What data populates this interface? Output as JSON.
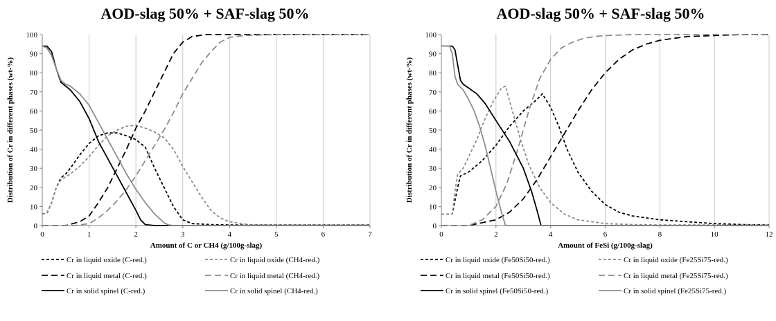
{
  "chart_data": [
    {
      "type": "line",
      "title": "AOD-slag 50% + SAF-slag 50%",
      "xlabel": "Amount of C or CH4 (g/100g-slag)",
      "ylabel": "Distribution of Cr in different phases (wt-%)",
      "xlim": [
        0,
        7
      ],
      "ylim": [
        0,
        100
      ],
      "xticks": [
        0,
        1,
        2,
        3,
        4,
        5,
        6,
        7
      ],
      "yticks": [
        0,
        10,
        20,
        30,
        40,
        50,
        60,
        70,
        80,
        90,
        100
      ],
      "grid": "vertical",
      "legend_placement": "bottom",
      "series": [
        {
          "name": "Cr in liquid oxide (C-red.)",
          "color": "#000000",
          "dash": "short",
          "points": [
            [
              0,
              6
            ],
            [
              0.1,
              6.5
            ],
            [
              0.2,
              12
            ],
            [
              0.3,
              20
            ],
            [
              0.4,
              25
            ],
            [
              0.5,
              27
            ],
            [
              0.6,
              30
            ],
            [
              0.8,
              37
            ],
            [
              1.0,
              43
            ],
            [
              1.2,
              47
            ],
            [
              1.4,
              48.5
            ],
            [
              1.6,
              48.5
            ],
            [
              1.8,
              47
            ],
            [
              2.0,
              45
            ],
            [
              2.2,
              41
            ],
            [
              2.4,
              30
            ],
            [
              2.6,
              20
            ],
            [
              2.8,
              10
            ],
            [
              3.0,
              3
            ],
            [
              3.2,
              1
            ],
            [
              3.6,
              0.5
            ],
            [
              4.0,
              0.3
            ],
            [
              7.0,
              0.3
            ]
          ]
        },
        {
          "name": "Cr in liquid oxide (CH4-red.)",
          "color": "#8c8c8c",
          "dash": "short",
          "points": [
            [
              0,
              6
            ],
            [
              0.1,
              6.5
            ],
            [
              0.2,
              12
            ],
            [
              0.3,
              20
            ],
            [
              0.4,
              24
            ],
            [
              0.6,
              27
            ],
            [
              0.8,
              31
            ],
            [
              1.0,
              36
            ],
            [
              1.2,
              42
            ],
            [
              1.4,
              47
            ],
            [
              1.6,
              50
            ],
            [
              1.8,
              52
            ],
            [
              2.0,
              52.5
            ],
            [
              2.2,
              51
            ],
            [
              2.4,
              49
            ],
            [
              2.6,
              46
            ],
            [
              2.8,
              40
            ],
            [
              3.0,
              31
            ],
            [
              3.2,
              23
            ],
            [
              3.4,
              15
            ],
            [
              3.6,
              8
            ],
            [
              3.8,
              4
            ],
            [
              4.0,
              2
            ],
            [
              4.4,
              0.5
            ],
            [
              5.0,
              0.3
            ],
            [
              7.0,
              0.3
            ]
          ]
        },
        {
          "name": "Cr in liquid metal (C-red.)",
          "color": "#000000",
          "dash": "long",
          "points": [
            [
              0,
              0
            ],
            [
              0.5,
              0
            ],
            [
              0.8,
              2
            ],
            [
              1.0,
              5
            ],
            [
              1.2,
              12
            ],
            [
              1.4,
              20
            ],
            [
              1.6,
              30
            ],
            [
              1.8,
              40
            ],
            [
              2.0,
              51
            ],
            [
              2.2,
              60
            ],
            [
              2.4,
              70
            ],
            [
              2.6,
              80
            ],
            [
              2.8,
              90
            ],
            [
              3.0,
              96
            ],
            [
              3.2,
              99
            ],
            [
              3.5,
              100
            ],
            [
              7.0,
              100
            ]
          ]
        },
        {
          "name": "Cr in liquid metal (CH4-red.)",
          "color": "#8c8c8c",
          "dash": "long",
          "points": [
            [
              0,
              0
            ],
            [
              0.7,
              0
            ],
            [
              1.0,
              1
            ],
            [
              1.2,
              4
            ],
            [
              1.4,
              8
            ],
            [
              1.6,
              13
            ],
            [
              1.8,
              19
            ],
            [
              2.0,
              26
            ],
            [
              2.2,
              34
            ],
            [
              2.4,
              42
            ],
            [
              2.6,
              50
            ],
            [
              2.8,
              59
            ],
            [
              3.0,
              69
            ],
            [
              3.2,
              77
            ],
            [
              3.4,
              85
            ],
            [
              3.6,
              91
            ],
            [
              3.8,
              96
            ],
            [
              4.0,
              98.5
            ],
            [
              4.3,
              99.5
            ],
            [
              5.0,
              100
            ],
            [
              7.0,
              100
            ]
          ]
        },
        {
          "name": "Cr in solid spinel (C-red.)",
          "color": "#000000",
          "dash": "solid",
          "points": [
            [
              0,
              94
            ],
            [
              0.1,
              94
            ],
            [
              0.2,
              91
            ],
            [
              0.3,
              82
            ],
            [
              0.4,
              75
            ],
            [
              0.5,
              73
            ],
            [
              0.6,
              71
            ],
            [
              0.8,
              65
            ],
            [
              1.0,
              56
            ],
            [
              1.2,
              44
            ],
            [
              1.4,
              35
            ],
            [
              1.6,
              26
            ],
            [
              1.8,
              17
            ],
            [
              2.0,
              8
            ],
            [
              2.1,
              3
            ],
            [
              2.2,
              0.5
            ],
            [
              2.4,
              0
            ],
            [
              7.0,
              0
            ]
          ]
        },
        {
          "name": "Cr in solid spinel (CH4-red.)",
          "color": "#8c8c8c",
          "dash": "solid",
          "points": [
            [
              0,
              94
            ],
            [
              0.1,
              93
            ],
            [
              0.2,
              89
            ],
            [
              0.3,
              82
            ],
            [
              0.4,
              76
            ],
            [
              0.5,
              74
            ],
            [
              0.6,
              73
            ],
            [
              0.8,
              69
            ],
            [
              1.0,
              63
            ],
            [
              1.2,
              54
            ],
            [
              1.4,
              45
            ],
            [
              1.6,
              36
            ],
            [
              1.8,
              27
            ],
            [
              2.0,
              19
            ],
            [
              2.2,
              12
            ],
            [
              2.4,
              6
            ],
            [
              2.6,
              1.5
            ],
            [
              2.7,
              0.3
            ],
            [
              2.8,
              0
            ],
            [
              7.0,
              0
            ]
          ]
        }
      ]
    },
    {
      "type": "line",
      "title": "AOD-slag 50% + SAF-slag 50%",
      "xlabel": "Amount of FeSi (g/100g-slag)",
      "ylabel": "Distribution of Cr in different phases (wt-%)",
      "xlim": [
        0,
        12
      ],
      "ylim": [
        0,
        100
      ],
      "xticks": [
        0,
        2,
        4,
        6,
        8,
        10,
        12
      ],
      "yticks": [
        0,
        10,
        20,
        30,
        40,
        50,
        60,
        70,
        80,
        90,
        100
      ],
      "grid": "vertical",
      "legend_placement": "bottom",
      "series": [
        {
          "name": "Cr in liquid oxide (Fe50Si50-red.)",
          "color": "#000000",
          "dash": "short",
          "points": [
            [
              0,
              6
            ],
            [
              0.4,
              6
            ],
            [
              0.6,
              20
            ],
            [
              0.7,
              26
            ],
            [
              1.0,
              28
            ],
            [
              1.5,
              34
            ],
            [
              2.0,
              42
            ],
            [
              2.5,
              52
            ],
            [
              3.0,
              60
            ],
            [
              3.5,
              66
            ],
            [
              3.7,
              69
            ],
            [
              4.0,
              62
            ],
            [
              4.3,
              52
            ],
            [
              4.6,
              40
            ],
            [
              5.0,
              28
            ],
            [
              5.5,
              18
            ],
            [
              6.0,
              11
            ],
            [
              6.5,
              7
            ],
            [
              7.0,
              5
            ],
            [
              8.0,
              3
            ],
            [
              9.0,
              2
            ],
            [
              10.0,
              1
            ],
            [
              11.0,
              0.5
            ],
            [
              12.0,
              0.3
            ]
          ]
        },
        {
          "name": "Cr in liquid oxide (Fe25Si75-red.)",
          "color": "#8c8c8c",
          "dash": "short",
          "points": [
            [
              0,
              6
            ],
            [
              0.4,
              6
            ],
            [
              0.5,
              18
            ],
            [
              0.6,
              27
            ],
            [
              0.8,
              30
            ],
            [
              1.0,
              36
            ],
            [
              1.3,
              45
            ],
            [
              1.6,
              56
            ],
            [
              1.9,
              65
            ],
            [
              2.2,
              72
            ],
            [
              2.35,
              73
            ],
            [
              2.6,
              60
            ],
            [
              2.9,
              45
            ],
            [
              3.2,
              32
            ],
            [
              3.6,
              20
            ],
            [
              4.0,
              12
            ],
            [
              4.5,
              6
            ],
            [
              5.0,
              3
            ],
            [
              6.0,
              1
            ],
            [
              7.0,
              0.5
            ],
            [
              8.0,
              0.3
            ],
            [
              12.0,
              0.3
            ]
          ]
        },
        {
          "name": "Cr in liquid metal (Fe50Si50-red.)",
          "color": "#000000",
          "dash": "long",
          "points": [
            [
              0,
              0
            ],
            [
              1.0,
              0
            ],
            [
              2.0,
              3
            ],
            [
              2.5,
              7
            ],
            [
              3.0,
              14
            ],
            [
              3.5,
              24
            ],
            [
              4.0,
              36
            ],
            [
              4.5,
              48
            ],
            [
              5.0,
              60
            ],
            [
              5.5,
              71
            ],
            [
              6.0,
              80
            ],
            [
              6.5,
              87
            ],
            [
              7.0,
              92
            ],
            [
              7.5,
              95
            ],
            [
              8.0,
              97
            ],
            [
              8.5,
              98
            ],
            [
              9.0,
              99
            ],
            [
              10.0,
              99.5
            ],
            [
              11.0,
              100
            ],
            [
              12.0,
              100
            ]
          ]
        },
        {
          "name": "Cr in liquid metal (Fe25Si75-red.)",
          "color": "#8c8c8c",
          "dash": "long",
          "points": [
            [
              0,
              0
            ],
            [
              1.0,
              0
            ],
            [
              1.5,
              3
            ],
            [
              2.0,
              10
            ],
            [
              2.4,
              22
            ],
            [
              2.8,
              40
            ],
            [
              3.2,
              60
            ],
            [
              3.6,
              77
            ],
            [
              4.0,
              87
            ],
            [
              4.4,
              93
            ],
            [
              4.8,
              96
            ],
            [
              5.2,
              98
            ],
            [
              5.6,
              99
            ],
            [
              6.0,
              99.5
            ],
            [
              7.0,
              100
            ],
            [
              12.0,
              100
            ]
          ]
        },
        {
          "name": "Cr in solid spinel (Fe50Si50-red.)",
          "color": "#000000",
          "dash": "solid",
          "points": [
            [
              0,
              94
            ],
            [
              0.4,
              94
            ],
            [
              0.5,
              92
            ],
            [
              0.6,
              84
            ],
            [
              0.7,
              76
            ],
            [
              0.8,
              74
            ],
            [
              1.0,
              72
            ],
            [
              1.3,
              69
            ],
            [
              1.6,
              64
            ],
            [
              2.0,
              55
            ],
            [
              2.5,
              44
            ],
            [
              3.0,
              30
            ],
            [
              3.3,
              18
            ],
            [
              3.5,
              8
            ],
            [
              3.65,
              0
            ],
            [
              12.0,
              0
            ]
          ]
        },
        {
          "name": "Cr in solid spinel (Fe25Si75-red.)",
          "color": "#8c8c8c",
          "dash": "solid",
          "points": [
            [
              0,
              94
            ],
            [
              0.3,
              94
            ],
            [
              0.4,
              90
            ],
            [
              0.5,
              78
            ],
            [
              0.6,
              74
            ],
            [
              0.8,
              71
            ],
            [
              1.0,
              66
            ],
            [
              1.2,
              60
            ],
            [
              1.4,
              52
            ],
            [
              1.6,
              42
            ],
            [
              1.8,
              30
            ],
            [
              2.0,
              18
            ],
            [
              2.2,
              7
            ],
            [
              2.35,
              0
            ],
            [
              12.0,
              0
            ]
          ]
        }
      ]
    }
  ]
}
